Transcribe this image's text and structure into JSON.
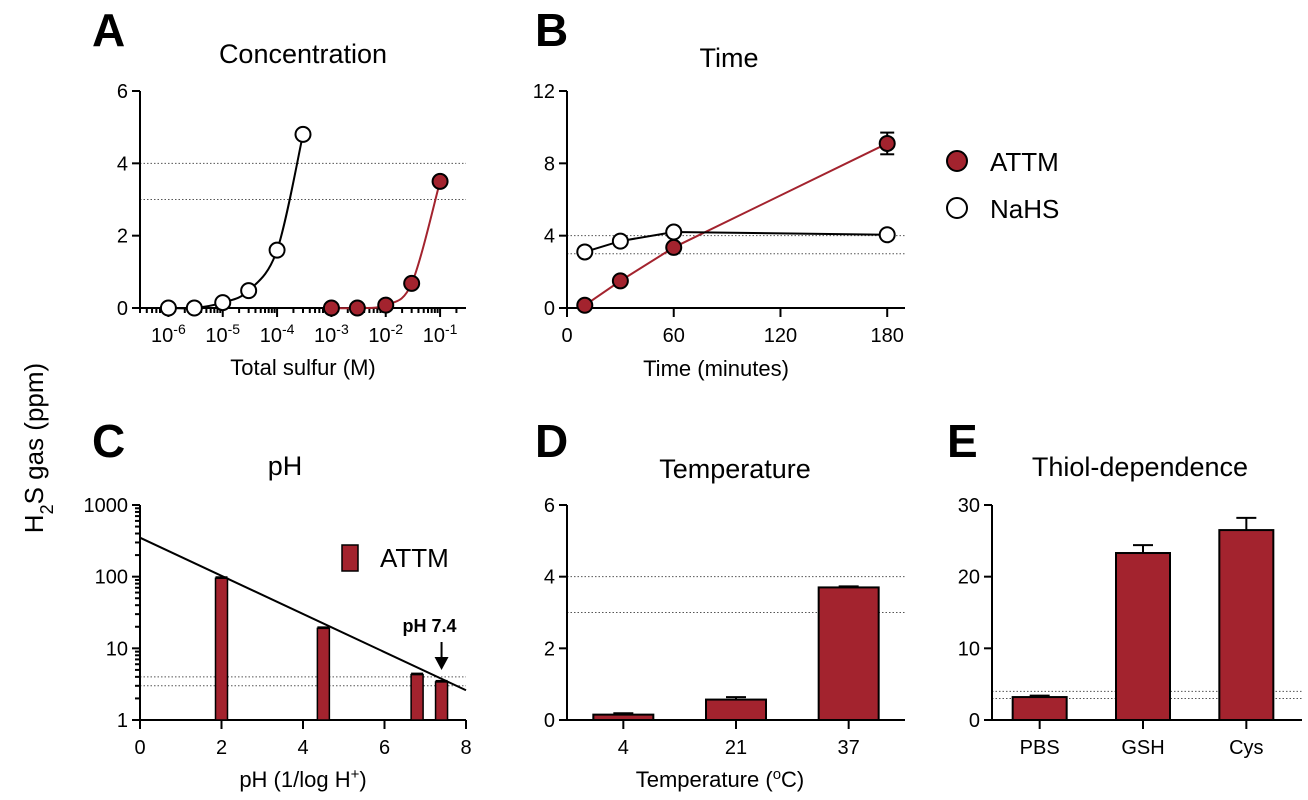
{
  "figure": {
    "shared_ylabel_prefix": "H",
    "shared_ylabel_sub": "2",
    "shared_ylabel_suffix": "S gas (ppm)"
  },
  "colors": {
    "attm": "#a3232e",
    "nahs": "#ffffff",
    "stroke": "#000000"
  },
  "chart_data": [
    {
      "id": "A",
      "letter": "A",
      "type": "line",
      "title": "Concentration",
      "xlabel": "Total sulfur (M)",
      "xscale": "log",
      "xlim": [
        3e-07,
        0.3
      ],
      "ylim": [
        0,
        6
      ],
      "yticks": [
        0,
        2,
        4,
        6
      ],
      "xticks": [
        {
          "v": 1e-06,
          "base": "10",
          "exp": "-6"
        },
        {
          "v": 1e-05,
          "base": "10",
          "exp": "-5"
        },
        {
          "v": 0.0001,
          "base": "10",
          "exp": "-4"
        },
        {
          "v": 0.001,
          "base": "10",
          "exp": "-3"
        },
        {
          "v": 0.01,
          "base": "10",
          "exp": "-2"
        },
        {
          "v": 0.1,
          "base": "10",
          "exp": "-1"
        }
      ],
      "ref_lines": [
        3,
        4
      ],
      "series": [
        {
          "name": "NaHS",
          "marker": "open",
          "x": [
            1e-06,
            3e-06,
            1e-05,
            3e-05,
            0.0001,
            0.0003
          ],
          "y": [
            0,
            0,
            0.15,
            0.48,
            1.6,
            4.8
          ]
        },
        {
          "name": "ATTM",
          "marker": "filled",
          "x": [
            0.001,
            0.003,
            0.01,
            0.03,
            0.1
          ],
          "y": [
            0,
            0,
            0.08,
            0.68,
            3.5
          ]
        }
      ]
    },
    {
      "id": "B",
      "letter": "B",
      "type": "line",
      "title": "Time",
      "xlabel": "Time (minutes)",
      "xscale": "linear",
      "xlim": [
        0,
        190
      ],
      "ylim": [
        0,
        12
      ],
      "yticks": [
        0,
        4,
        8,
        12
      ],
      "xticks": [
        0,
        60,
        120,
        180
      ],
      "ref_lines": [
        3,
        4
      ],
      "series": [
        {
          "name": "ATTM",
          "marker": "filled",
          "x": [
            10,
            30,
            60,
            180
          ],
          "y": [
            0.15,
            1.5,
            3.35,
            9.1
          ],
          "err": [
            0,
            0,
            0,
            0.6
          ]
        },
        {
          "name": "NaHS",
          "marker": "open",
          "x": [
            10,
            30,
            60,
            180
          ],
          "y": [
            3.1,
            3.7,
            4.2,
            4.05
          ]
        }
      ],
      "legend": [
        {
          "label": "ATTM",
          "marker": "filled"
        },
        {
          "label": "NaHS",
          "marker": "open"
        }
      ]
    },
    {
      "id": "C",
      "letter": "C",
      "type": "bar",
      "title": "pH",
      "xlabel_prefix": "pH (1/log H",
      "xlabel_sup": "+",
      "xlabel_suffix": ")",
      "xscale": "linear",
      "yscale": "log",
      "xlim": [
        0,
        8
      ],
      "ylim": [
        1,
        1000
      ],
      "xticks": [
        0,
        2,
        4,
        6,
        8
      ],
      "yticks": [
        1,
        10,
        100,
        1000
      ],
      "ref_lines": [
        3,
        4
      ],
      "bars": [
        {
          "x": 2,
          "y": 95
        },
        {
          "x": 4.5,
          "y": 19
        },
        {
          "x": 6.8,
          "y": 4.3
        },
        {
          "x": 7.4,
          "y": 3.4
        }
      ],
      "fit_line": {
        "x": [
          0,
          8
        ],
        "y": [
          350,
          2.6
        ]
      },
      "legend": [
        {
          "label": "ATTM",
          "marker": "bar"
        }
      ],
      "annotation": {
        "text": "pH 7.4",
        "x": 7.4
      }
    },
    {
      "id": "D",
      "letter": "D",
      "type": "bar",
      "title": "Temperature",
      "xlabel_prefix": "Temperature (",
      "xlabel_sup": "o",
      "xlabel_suffix": "C)",
      "ylim": [
        0,
        6
      ],
      "yticks": [
        0,
        2,
        4,
        6
      ],
      "ref_lines": [
        3,
        4
      ],
      "categories": [
        "4",
        "21",
        "37"
      ],
      "values": [
        0.15,
        0.57,
        3.7
      ],
      "err": [
        0.04,
        0.07,
        0.03
      ]
    },
    {
      "id": "E",
      "letter": "E",
      "type": "bar",
      "title": "Thiol-dependence",
      "ylim": [
        0,
        30
      ],
      "yticks": [
        0,
        10,
        20,
        30
      ],
      "ref_lines": [
        3,
        4
      ],
      "categories": [
        "PBS",
        "GSH",
        "Cys"
      ],
      "values": [
        3.2,
        23.3,
        26.5
      ],
      "err": [
        0.2,
        1.1,
        1.7
      ]
    }
  ]
}
